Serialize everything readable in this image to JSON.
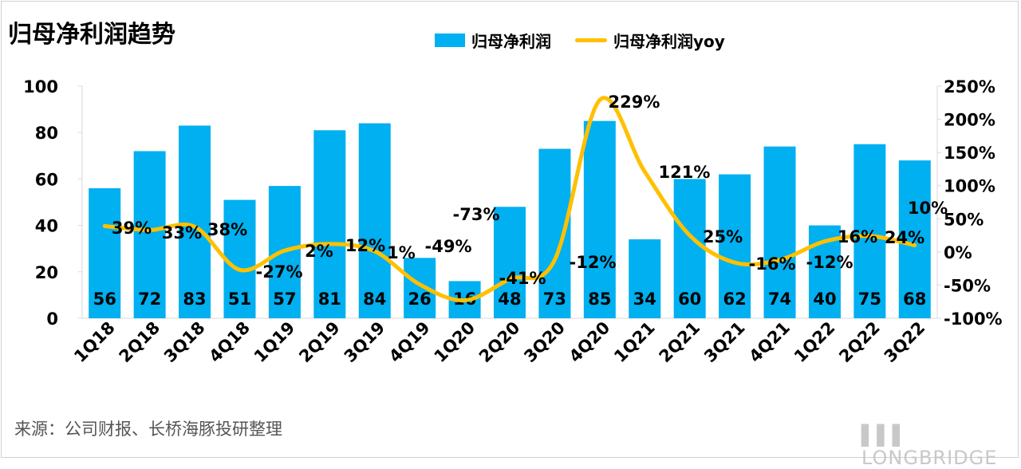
{
  "title": "归母净利润趋势",
  "source": "来源：公司财报、长桥海豚投研整理",
  "watermark": "LONGBRIDGE DolphinResearch",
  "brand": "LONGBRIDGE",
  "chart_data": {
    "type": "bar+line",
    "categories": [
      "1Q18",
      "2Q18",
      "3Q18",
      "4Q18",
      "1Q19",
      "2Q19",
      "3Q19",
      "4Q19",
      "1Q20",
      "2Q20",
      "3Q20",
      "4Q20",
      "1Q21",
      "2Q21",
      "3Q21",
      "4Q21",
      "1Q22",
      "2Q22",
      "3Q22"
    ],
    "series": [
      {
        "name": "归母净利润",
        "type": "bar",
        "axis": "left",
        "color": "#00b0f0",
        "values": [
          56,
          72,
          83,
          51,
          57,
          81,
          84,
          26,
          16,
          48,
          73,
          85,
          34,
          60,
          62,
          74,
          40,
          75,
          68
        ]
      },
      {
        "name": "归母净利润yoy",
        "type": "line",
        "axis": "right",
        "color": "#ffc000",
        "values": [
          39,
          33,
          38,
          -27,
          2,
          12,
          1,
          -49,
          -73,
          -41,
          -12,
          229,
          121,
          25,
          -16,
          -12,
          16,
          24,
          10
        ]
      }
    ],
    "left_axis": {
      "ylim": [
        0,
        100
      ],
      "ticks": [
        "0",
        "20",
        "40",
        "60",
        "80",
        "100"
      ]
    },
    "right_axis": {
      "ylim": [
        -100,
        250
      ],
      "ticks": [
        "-100%",
        "-50%",
        "0%",
        "50%",
        "100%",
        "150%",
        "200%",
        "250%"
      ]
    },
    "grid": false,
    "legend": "top"
  }
}
